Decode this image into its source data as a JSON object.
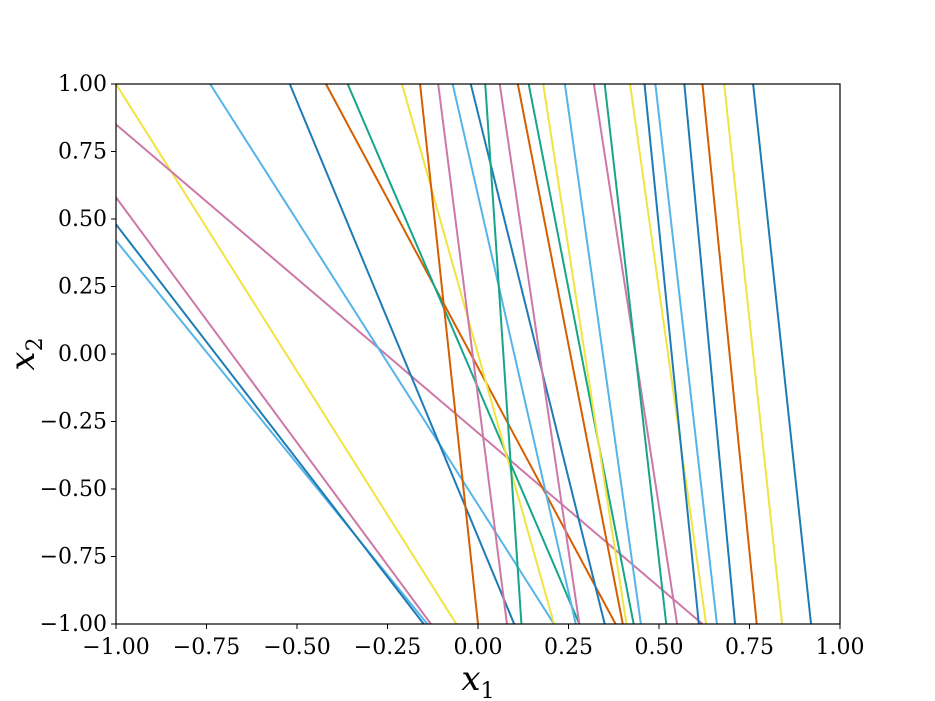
{
  "chart_data": {
    "type": "line",
    "xlabel": "x",
    "xlabel_sub": "1",
    "ylabel": "x",
    "ylabel_sub": "2",
    "xlim": [
      -1.0,
      1.0
    ],
    "ylim": [
      -1.0,
      1.0
    ],
    "xticks": [
      -1.0,
      -0.75,
      -0.5,
      -0.25,
      0.0,
      0.25,
      0.5,
      0.75,
      1.0
    ],
    "xtick_labels": [
      "−1.00",
      "−0.75",
      "−0.50",
      "−0.25",
      "0.00",
      "0.25",
      "0.50",
      "0.75",
      "1.00"
    ],
    "yticks": [
      -1.0,
      -0.75,
      -0.5,
      -0.25,
      0.0,
      0.25,
      0.5,
      0.75,
      1.0
    ],
    "ytick_labels": [
      "−1.00",
      "−0.75",
      "−0.50",
      "−0.25",
      "0.00",
      "0.25",
      "0.50",
      "0.75",
      "1.00"
    ],
    "grid": false,
    "legend": false,
    "colors": {
      "blue": "#1f7bb6",
      "skyblue": "#56b4e9",
      "yellow": "#f0e442",
      "pink": "#cc79a7",
      "green": "#17a589",
      "orange": "#d55e00"
    },
    "lines": [
      {
        "color": "skyblue",
        "p1": [
          -1.0,
          0.42
        ],
        "p2": [
          -0.14,
          -1.0
        ]
      },
      {
        "color": "blue",
        "p1": [
          -1.0,
          0.48
        ],
        "p2": [
          -0.15,
          -1.0
        ]
      },
      {
        "color": "pink",
        "p1": [
          -1.0,
          0.58
        ],
        "p2": [
          -0.13,
          -1.0
        ]
      },
      {
        "color": "yellow",
        "p1": [
          -1.0,
          1.0
        ],
        "p2": [
          -0.06,
          -1.0
        ]
      },
      {
        "color": "pink",
        "p1": [
          -1.0,
          0.85
        ],
        "p2": [
          0.62,
          -1.0
        ]
      },
      {
        "color": "skyblue",
        "p1": [
          -0.74,
          1.0
        ],
        "p2": [
          0.21,
          -1.0
        ]
      },
      {
        "color": "blue",
        "p1": [
          -0.52,
          1.0
        ],
        "p2": [
          0.1,
          -1.0
        ]
      },
      {
        "color": "orange",
        "p1": [
          -0.42,
          1.0
        ],
        "p2": [
          0.38,
          -1.0
        ]
      },
      {
        "color": "green",
        "p1": [
          -0.36,
          1.0
        ],
        "p2": [
          0.28,
          -1.0
        ]
      },
      {
        "color": "yellow",
        "p1": [
          -0.21,
          1.0
        ],
        "p2": [
          0.21,
          -1.0
        ]
      },
      {
        "color": "orange",
        "p1": [
          -0.16,
          1.0
        ],
        "p2": [
          0.0,
          -1.0
        ]
      },
      {
        "color": "pink",
        "p1": [
          -0.11,
          1.0
        ],
        "p2": [
          0.08,
          -1.0
        ]
      },
      {
        "color": "skyblue",
        "p1": [
          -0.07,
          1.0
        ],
        "p2": [
          0.27,
          -1.0
        ]
      },
      {
        "color": "blue",
        "p1": [
          -0.02,
          1.0
        ],
        "p2": [
          0.35,
          -1.0
        ]
      },
      {
        "color": "green",
        "p1": [
          0.02,
          1.0
        ],
        "p2": [
          0.12,
          -1.0
        ]
      },
      {
        "color": "pink",
        "p1": [
          0.06,
          1.0
        ],
        "p2": [
          0.28,
          -1.0
        ]
      },
      {
        "color": "orange",
        "p1": [
          0.11,
          1.0
        ],
        "p2": [
          0.4,
          -1.0
        ]
      },
      {
        "color": "green",
        "p1": [
          0.14,
          1.0
        ],
        "p2": [
          0.43,
          -1.0
        ]
      },
      {
        "color": "yellow",
        "p1": [
          0.18,
          1.0
        ],
        "p2": [
          0.41,
          -1.0
        ]
      },
      {
        "color": "skyblue",
        "p1": [
          0.24,
          1.0
        ],
        "p2": [
          0.45,
          -1.0
        ]
      },
      {
        "color": "pink",
        "p1": [
          0.32,
          1.0
        ],
        "p2": [
          0.55,
          -1.0
        ]
      },
      {
        "color": "green",
        "p1": [
          0.35,
          1.0
        ],
        "p2": [
          0.52,
          -1.0
        ]
      },
      {
        "color": "yellow",
        "p1": [
          0.42,
          1.0
        ],
        "p2": [
          0.63,
          -1.0
        ]
      },
      {
        "color": "blue",
        "p1": [
          0.46,
          1.0
        ],
        "p2": [
          0.61,
          -1.0
        ]
      },
      {
        "color": "skyblue",
        "p1": [
          0.49,
          1.0
        ],
        "p2": [
          0.66,
          -1.0
        ]
      },
      {
        "color": "blue",
        "p1": [
          0.57,
          1.0
        ],
        "p2": [
          0.71,
          -1.0
        ]
      },
      {
        "color": "orange",
        "p1": [
          0.62,
          1.0
        ],
        "p2": [
          0.77,
          -1.0
        ]
      },
      {
        "color": "yellow",
        "p1": [
          0.68,
          1.0
        ],
        "p2": [
          0.84,
          -1.0
        ]
      },
      {
        "color": "blue",
        "p1": [
          0.76,
          1.0
        ],
        "p2": [
          0.92,
          -1.0
        ]
      }
    ]
  }
}
